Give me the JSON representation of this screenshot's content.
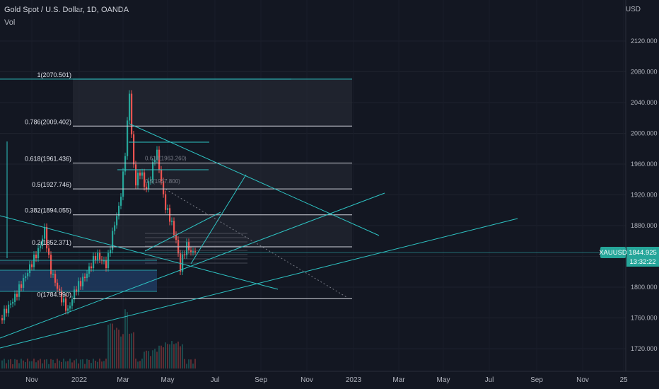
{
  "header": {
    "title": "Gold Spot / U.S. Dollar, 1D, OANDA",
    "indicator": "Vol",
    "currency": "USD"
  },
  "chart_data": {
    "type": "candlestick",
    "symbol": "XAUUSD",
    "last_price": "1844.925",
    "countdown": "13:32:22",
    "y_ticks": [
      "2120.000",
      "2080.000",
      "2040.000",
      "2000.000",
      "1960.000",
      "1920.000",
      "1880.000",
      "1840.000",
      "1800.000",
      "1760.000",
      "1720.000"
    ],
    "y_values": [
      2120,
      2080,
      2040,
      2000,
      1960,
      1920,
      1880,
      1840,
      1800,
      1760,
      1720
    ],
    "x_ticks": [
      "Nov",
      "2022",
      "Mar",
      "May",
      "Jul",
      "Sep",
      "Nov",
      "2023",
      "Mar",
      "May",
      "Jul",
      "Sep",
      "Nov",
      "25"
    ],
    "fib_levels": [
      {
        "label": "1(2070.501)",
        "value": 2070.501
      },
      {
        "label": "0.786(2009.402)",
        "value": 2009.402
      },
      {
        "label": "0.618(1961.436)",
        "value": 1961.436
      },
      {
        "label": "0.5(1927.746)",
        "value": 1927.746
      },
      {
        "label": "0.382(1894.055)",
        "value": 1894.055
      },
      {
        "label": "0.2(1852.371)",
        "value": 1852.371
      },
      {
        "label": "0(1784.990)",
        "value": 1784.99
      }
    ],
    "inner_fib_labels": [
      "0.618(1963.260)",
      "0.5(1937.800)"
    ]
  },
  "colors": {
    "background": "#131722",
    "line": "#2ec4c4",
    "up": "#26a69a",
    "down": "#ef5350",
    "price_tag": "#26a69a",
    "zone": "#1e3a5f"
  }
}
